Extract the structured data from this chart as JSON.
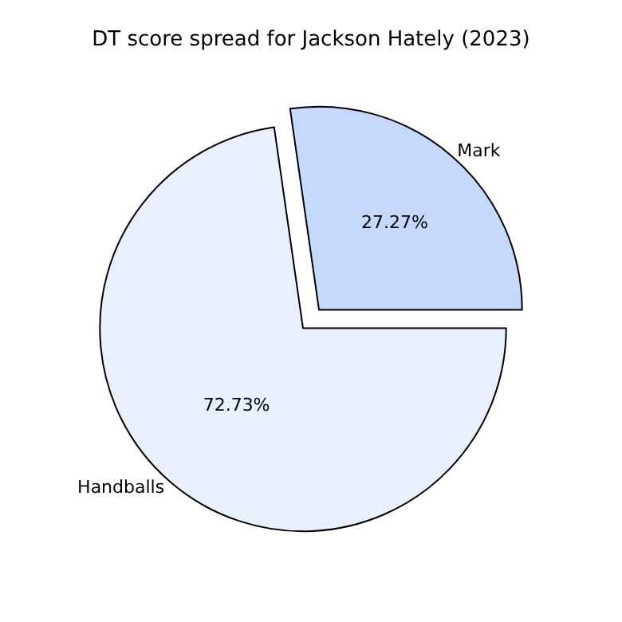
{
  "chart_data": {
    "type": "pie",
    "title": "DT score spread for Jackson Hately (2023)",
    "categories": [
      "Handballs",
      "Mark"
    ],
    "values": [
      72.73,
      27.27
    ],
    "colors": [
      "#e8effd",
      "#c6d8fb"
    ],
    "value_labels": [
      "72.73%",
      "27.27%"
    ]
  }
}
